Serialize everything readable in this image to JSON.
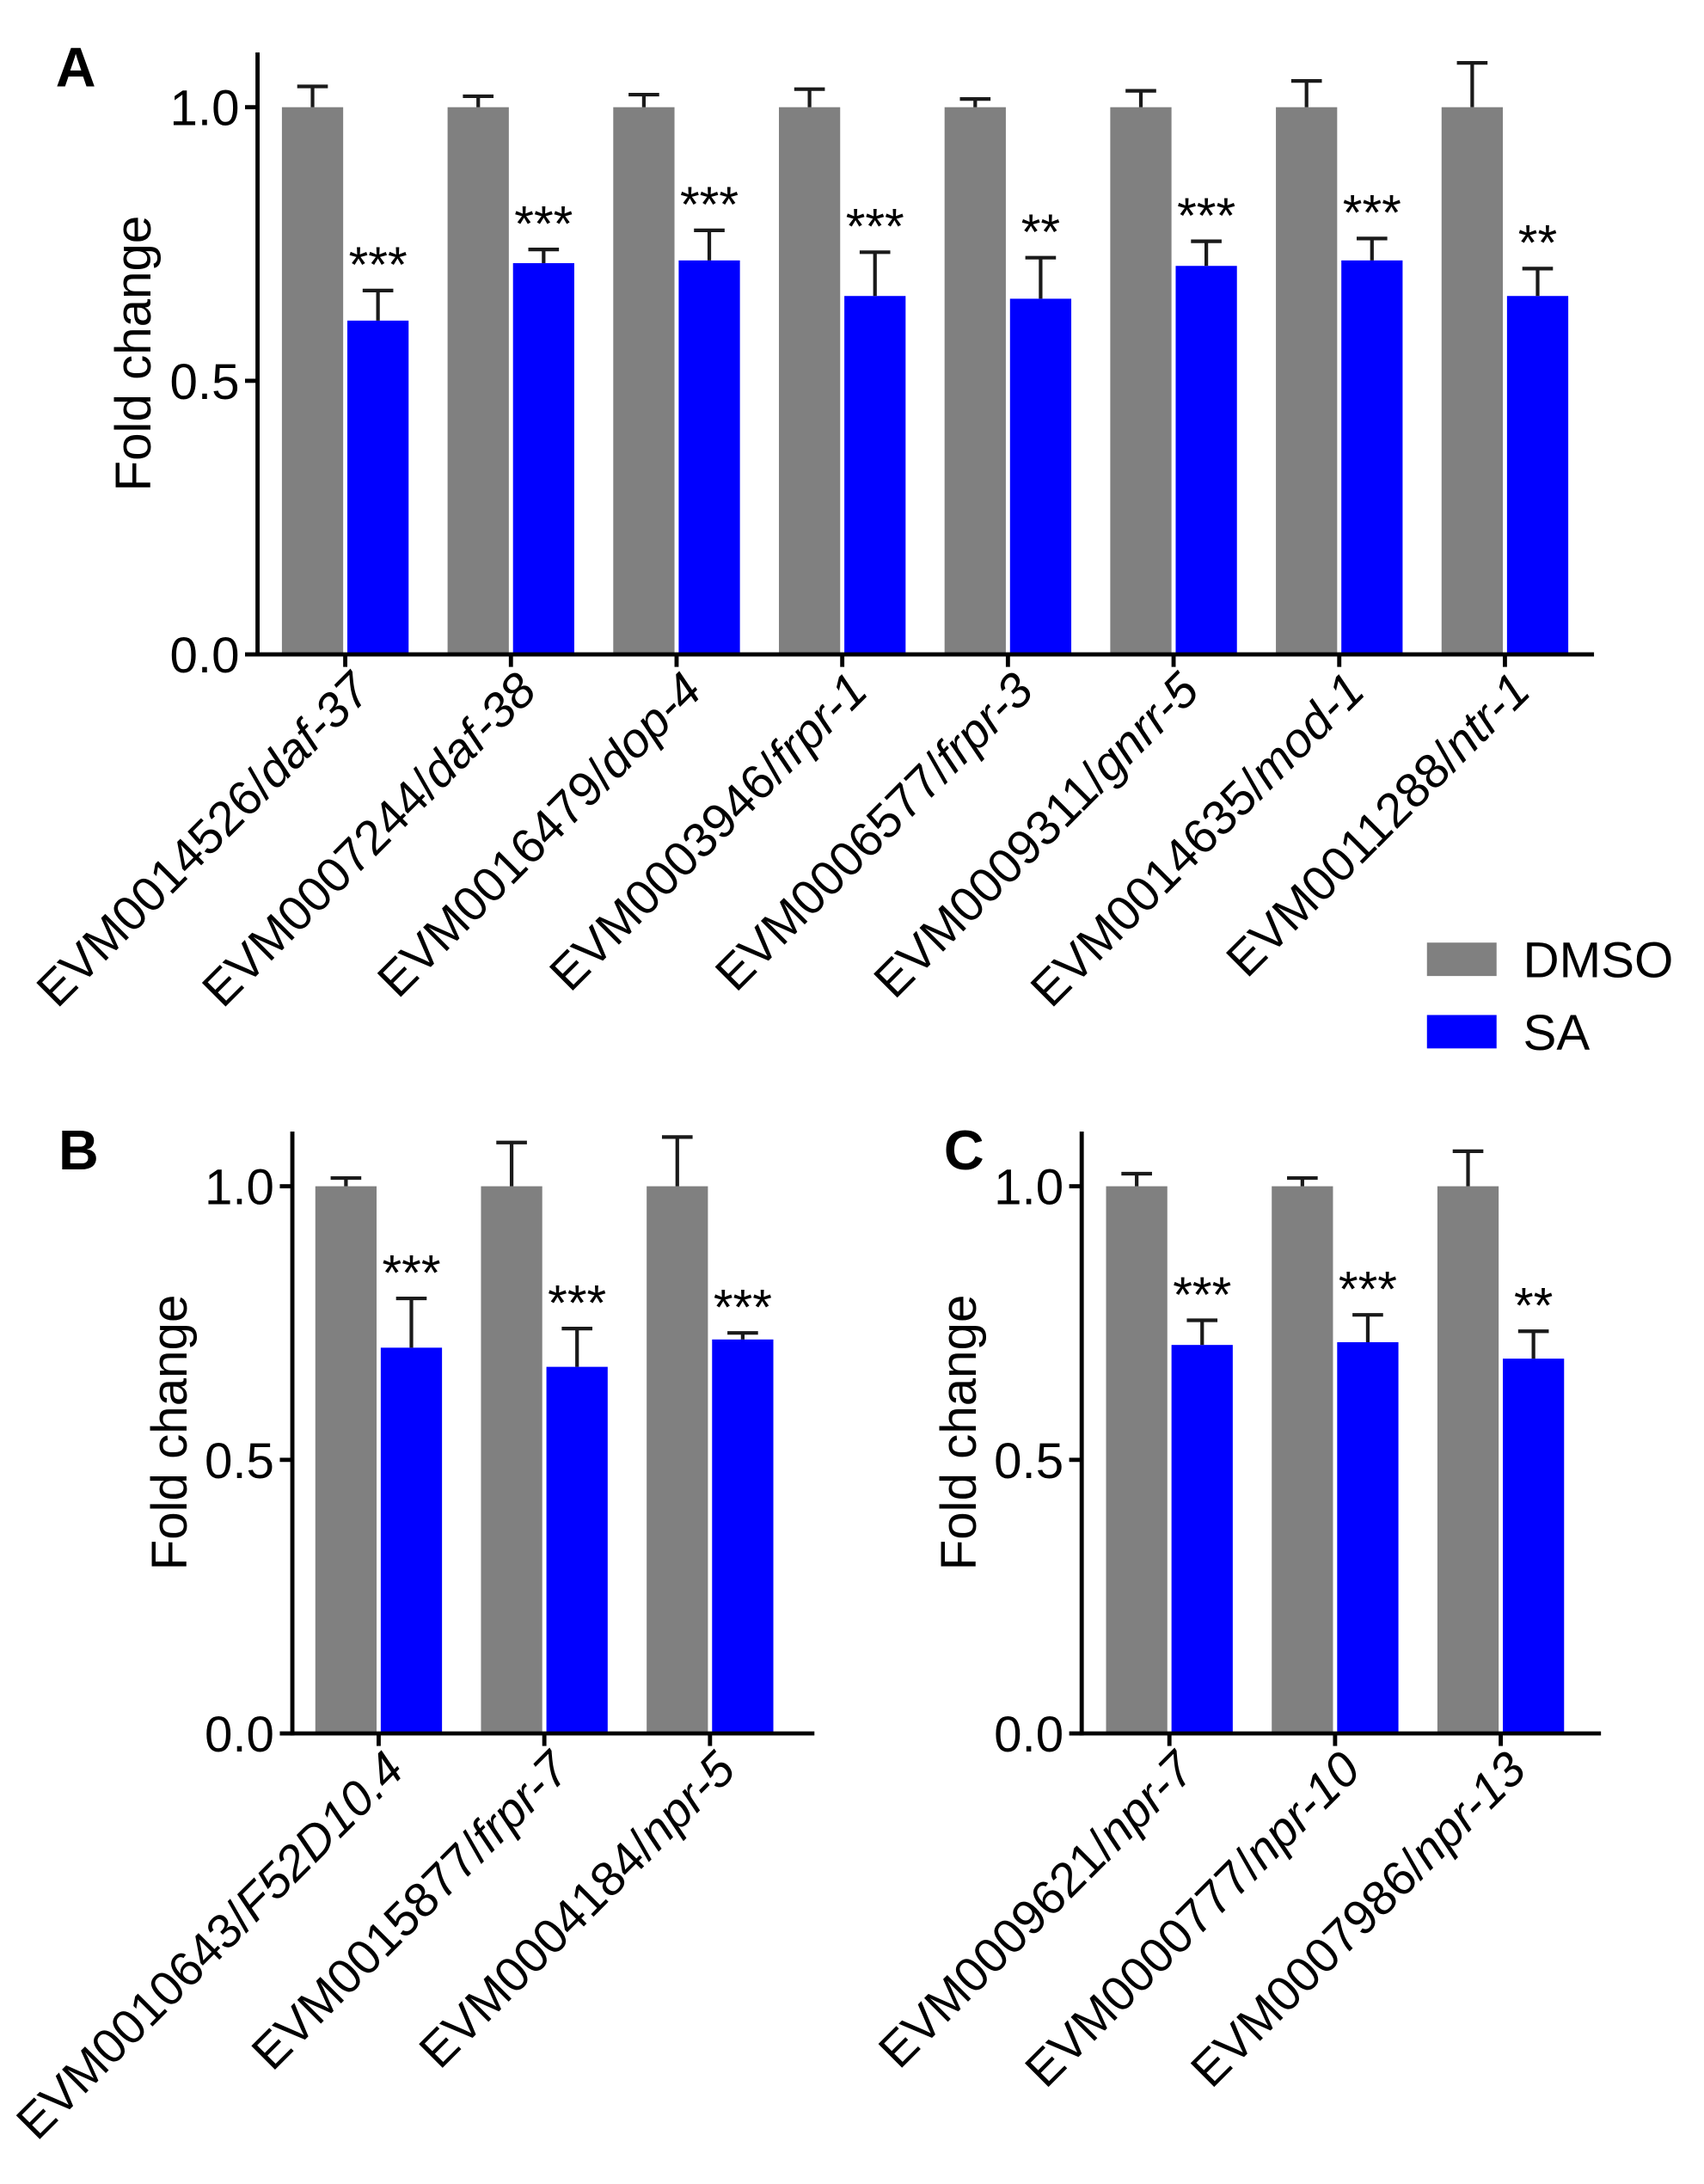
{
  "chart_data": [
    {
      "panel": "A",
      "type": "bar",
      "ylabel": "Fold change",
      "ylim": [
        0,
        1.1
      ],
      "yticks": [
        0,
        0.5,
        1.0
      ],
      "ytick_labels": [
        "0.0",
        "0.5",
        "1.0"
      ],
      "categories": [
        "EVM0014526/daf-37",
        "EVM0007244/daf-38",
        "EVM0016479/dop-4",
        "EVM0003946/frpr-1",
        "EVM0006577/frpr-3",
        "EVM0009311/gnrr-5",
        "EVM0014635/mod-1",
        "EVM0011288/ntr-1"
      ],
      "series": [
        {
          "name": "DMSO",
          "color": "#808080",
          "values": [
            1.0,
            1.0,
            1.0,
            1.0,
            1.0,
            1.0,
            1.0,
            1.0
          ],
          "errors": [
            0.038,
            0.02,
            0.023,
            0.033,
            0.015,
            0.03,
            0.048,
            0.081
          ]
        },
        {
          "name": "SA",
          "color": "#0000ff",
          "values": [
            0.61,
            0.715,
            0.72,
            0.655,
            0.65,
            0.71,
            0.72,
            0.655
          ],
          "errors": [
            0.055,
            0.025,
            0.055,
            0.08,
            0.075,
            0.045,
            0.04,
            0.05
          ]
        }
      ],
      "significance": [
        "***",
        "***",
        "***",
        "***",
        "**",
        "***",
        "***",
        "**"
      ]
    },
    {
      "panel": "B",
      "type": "bar",
      "ylabel": "Fold change",
      "ylim": [
        0,
        1.1
      ],
      "yticks": [
        0,
        0.5,
        1.0
      ],
      "ytick_labels": [
        "0.0",
        "0.5",
        "1.0"
      ],
      "categories": [
        "EVM0010643/F52D10.4",
        "EVM0015877/frpr-7",
        "EVM0004184/npr-5"
      ],
      "series": [
        {
          "name": "DMSO",
          "color": "#808080",
          "values": [
            1.0,
            1.0,
            1.0
          ],
          "errors": [
            0.015,
            0.08,
            0.09
          ]
        },
        {
          "name": "SA",
          "color": "#0000ff",
          "values": [
            0.705,
            0.67,
            0.72
          ],
          "errors": [
            0.09,
            0.07,
            0.012
          ]
        }
      ],
      "significance": [
        "***",
        "***",
        "***"
      ]
    },
    {
      "panel": "C",
      "type": "bar",
      "ylabel": "Fold change",
      "ylim": [
        0,
        1.1
      ],
      "yticks": [
        0,
        0.5,
        1.0
      ],
      "ytick_labels": [
        "0.0",
        "0.5",
        "1.0"
      ],
      "categories": [
        "EVM0009621/npr-7",
        "EVM0000777/npr-10",
        "EVM0007986/npr-13"
      ],
      "series": [
        {
          "name": "DMSO",
          "color": "#808080",
          "values": [
            1.0,
            1.0,
            1.0
          ],
          "errors": [
            0.023,
            0.015,
            0.064
          ]
        },
        {
          "name": "SA",
          "color": "#0000ff",
          "values": [
            0.71,
            0.715,
            0.685
          ],
          "errors": [
            0.045,
            0.05,
            0.05
          ]
        }
      ],
      "significance": [
        "***",
        "***",
        "**"
      ]
    }
  ]
}
